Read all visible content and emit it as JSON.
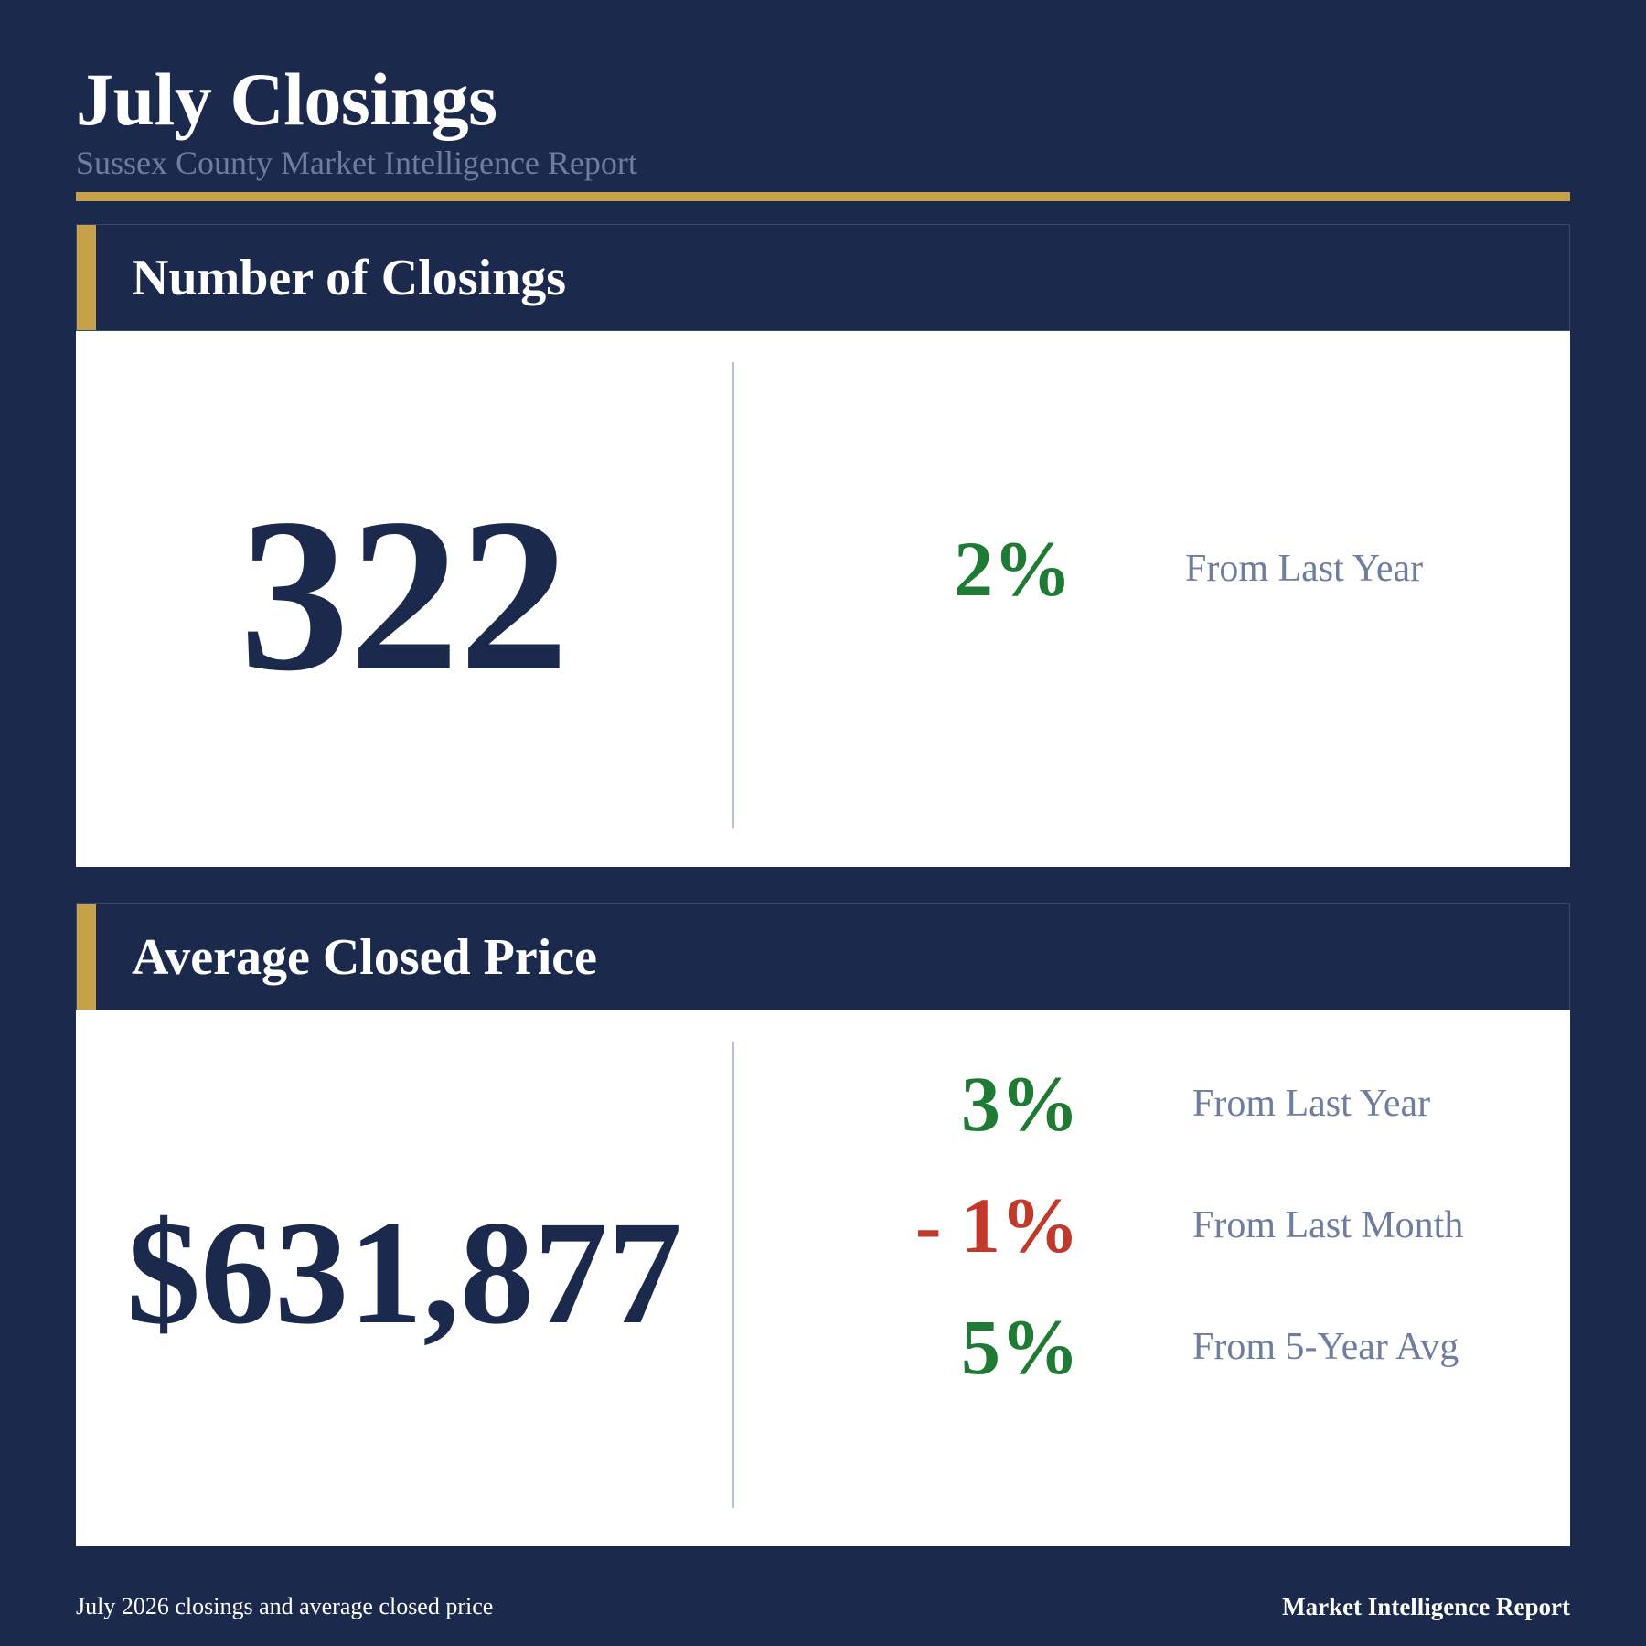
{
  "header": {
    "title": "July Closings",
    "subtitle": "Sussex County Market Intelligence Report"
  },
  "closings": {
    "heading": "Number of Closings",
    "value": "322",
    "stats": [
      {
        "pct": "2%",
        "label": "From Last Year",
        "trend": "up"
      }
    ]
  },
  "price": {
    "heading": "Average Closed Price",
    "value": "$631,877",
    "stats": [
      {
        "pct": "3%",
        "label": "From Last Year",
        "trend": "up"
      },
      {
        "pct": "- 1%",
        "label": "From Last Month",
        "trend": "down"
      },
      {
        "pct": "5%",
        "label": "From 5-Year Avg",
        "trend": "up"
      }
    ]
  },
  "footer": {
    "caption": "July 2026 closings and average closed price",
    "brand": "Market Intelligence Report"
  },
  "colors": {
    "background": "#1b2a4c",
    "accent_gold": "#c8a24a",
    "positive": "#1f7a34",
    "negative": "#c0392b",
    "muted_text": "#6f7d9e"
  }
}
